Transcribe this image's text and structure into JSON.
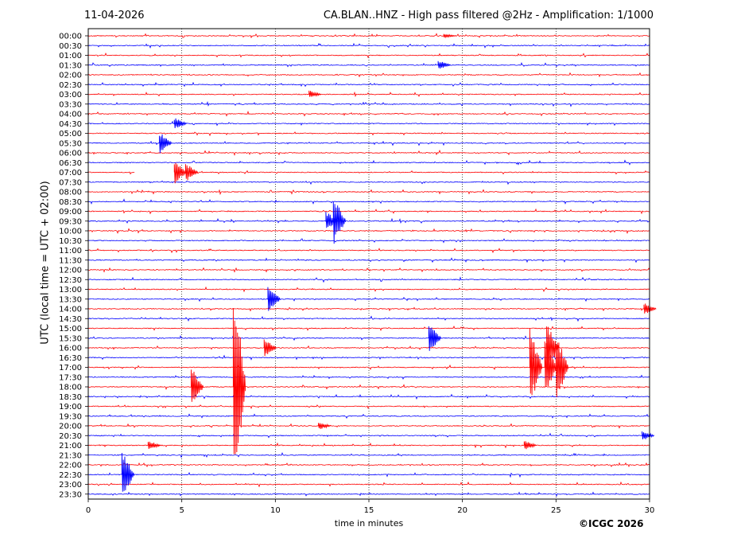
{
  "header": {
    "date": "11-04-2026",
    "title": "CA.BLAN..HNZ - High pass filtered @2Hz - Amplification: 1/1000"
  },
  "footer": {
    "copyright": "©ICGC 2026"
  },
  "chart_data": {
    "type": "line",
    "xlabel": "time in minutes",
    "ylabel": "UTC (local time = UTC + 02:00)",
    "xlim": [
      0,
      30
    ],
    "xticks": [
      0,
      5,
      10,
      15,
      20,
      25,
      30
    ],
    "x_gridlines": [
      5,
      10,
      15,
      20,
      25
    ],
    "grid": "vertical dotted",
    "trace_colors": [
      "#ff0000",
      "#0000ff"
    ],
    "ytick_labels": [
      "00:00",
      "00:30",
      "01:00",
      "01:30",
      "02:00",
      "02:30",
      "03:00",
      "03:30",
      "04:00",
      "04:30",
      "05:00",
      "05:30",
      "06:00",
      "06:30",
      "07:00",
      "07:30",
      "08:00",
      "08:30",
      "09:00",
      "09:30",
      "10:00",
      "10:30",
      "11:00",
      "11:30",
      "12:00",
      "12:30",
      "13:00",
      "13:30",
      "14:00",
      "14:30",
      "15:00",
      "15:30",
      "16:00",
      "16:30",
      "17:00",
      "17:30",
      "18:00",
      "18:30",
      "19:00",
      "19:30",
      "20:00",
      "20:30",
      "21:00",
      "21:30",
      "22:00",
      "22:30",
      "23:00",
      "23:30"
    ],
    "events": [
      {
        "row": "00:00",
        "minute": 19.0,
        "amp": 0.2
      },
      {
        "row": "01:30",
        "minute": 18.7,
        "amp": 0.5
      },
      {
        "row": "03:00",
        "minute": 11.8,
        "amp": 0.4
      },
      {
        "row": "04:30",
        "minute": 4.6,
        "amp": 0.6
      },
      {
        "row": "05:30",
        "minute": 3.8,
        "amp": 1.2
      },
      {
        "row": "07:00",
        "minute": 4.6,
        "amp": 1.2
      },
      {
        "row": "07:00",
        "minute": 5.2,
        "amp": 1.0
      },
      {
        "row": "09:30",
        "minute": 13.1,
        "amp": 2.5
      },
      {
        "row": "09:30",
        "minute": 12.7,
        "amp": 1.0
      },
      {
        "row": "13:30",
        "minute": 9.6,
        "amp": 1.5
      },
      {
        "row": "14:00",
        "minute": 29.7,
        "amp": 0.6
      },
      {
        "row": "15:30",
        "minute": 18.2,
        "amp": 1.5
      },
      {
        "row": "16:00",
        "minute": 9.4,
        "amp": 1.0
      },
      {
        "row": "16:00",
        "minute": 24.5,
        "amp": 2.5
      },
      {
        "row": "17:00",
        "minute": 23.6,
        "amp": 4.0
      },
      {
        "row": "17:00",
        "minute": 24.4,
        "amp": 3.0
      },
      {
        "row": "17:00",
        "minute": 25.0,
        "amp": 3.5
      },
      {
        "row": "18:00",
        "minute": 5.5,
        "amp": 2.0
      },
      {
        "row": "18:00",
        "minute": 7.75,
        "amp": 12.0
      },
      {
        "row": "20:00",
        "minute": 12.3,
        "amp": 0.4
      },
      {
        "row": "20:30",
        "minute": 29.6,
        "amp": 0.5
      },
      {
        "row": "21:00",
        "minute": 3.2,
        "amp": 0.5
      },
      {
        "row": "21:00",
        "minute": 23.3,
        "amp": 0.5
      },
      {
        "row": "22:30",
        "minute": 1.8,
        "amp": 2.5
      }
    ],
    "data_gaps": [
      {
        "row": "07:00",
        "from_minute": 2.5,
        "to_minute": 5.4
      }
    ]
  }
}
